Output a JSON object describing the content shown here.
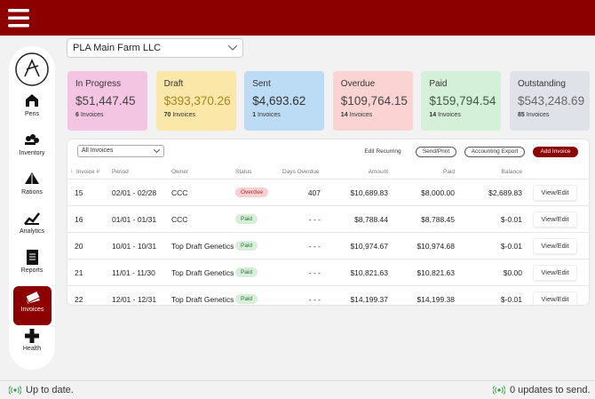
{
  "farm_select": "PLA Main Farm LLC",
  "sidebar": {
    "items": [
      {
        "label": "Pens"
      },
      {
        "label": "Inventory"
      },
      {
        "label": "Rations"
      },
      {
        "label": "Analytics"
      },
      {
        "label": "Reports"
      },
      {
        "label": "Invoices",
        "active": true
      },
      {
        "label": "Health"
      }
    ]
  },
  "cards": [
    {
      "label": "In Progress",
      "amount": "$51,447.45",
      "count": "6",
      "unit": "Invoices",
      "color": "#f3c5e2",
      "amount_color": "#444444"
    },
    {
      "label": "Draft",
      "amount": "$393,370.26",
      "count": "70",
      "unit": "Invoices",
      "color": "#fbe7a8",
      "amount_color": "#a58521"
    },
    {
      "label": "Sent",
      "amount": "$4,693.62",
      "count": "1",
      "unit": "Invoices",
      "color": "#bcdcf6",
      "amount_color": "#333333"
    },
    {
      "label": "Overdue",
      "amount": "$109,764.15",
      "count": "14",
      "unit": "Invoices",
      "color": "#fbd3d3",
      "amount_color": "#444444"
    },
    {
      "label": "Paid",
      "amount": "$159,794.54",
      "count": "14",
      "unit": "Invoices",
      "color": "#d5f0d8",
      "amount_color": "#3d5a44"
    },
    {
      "label": "Outstanding",
      "amount": "$543,248.69",
      "count": "85",
      "unit": "Invoices",
      "color": "#dfe3e9",
      "amount_color": "#666666"
    }
  ],
  "table": {
    "filter": "All Invoices",
    "buttons": [
      "Edit Recurring",
      "Send/Print",
      "Accounting Export",
      "Add Invoice"
    ],
    "columns": [
      "Invoice #",
      "Period",
      "Owner",
      "Status",
      "Days Overdue",
      "Amount",
      "Paid",
      "Balance"
    ],
    "action": "View/Edit",
    "rows": [
      [
        "15",
        "02/01 - 02/28",
        "CCC",
        "Overdue",
        "407",
        "$10,689.83",
        "$8,000.00",
        "$2,689.83"
      ],
      [
        "16",
        "01/01 - 01/31",
        "CCC",
        "Paid",
        "- - -",
        "$8,788.44",
        "$8,788.45",
        "$-0.01"
      ],
      [
        "20",
        "10/01 - 10/31",
        "Top Draft Genetics",
        "Paid",
        "- - -",
        "$10,974.67",
        "$10,974.68",
        "$-0.01"
      ],
      [
        "21",
        "11/01 - 11/30",
        "Top Draft Genetics",
        "Paid",
        "- - -",
        "$10,821.63",
        "$10,821.63",
        "$0.00"
      ],
      [
        "22",
        "12/01 - 12/31",
        "Top Draft Genetics",
        "Paid",
        "- - -",
        "$14,199.37",
        "$14,199.38",
        "$-0.01"
      ]
    ]
  },
  "status_bar": {
    "left": "Up to date.",
    "right": "0 updates to send."
  }
}
